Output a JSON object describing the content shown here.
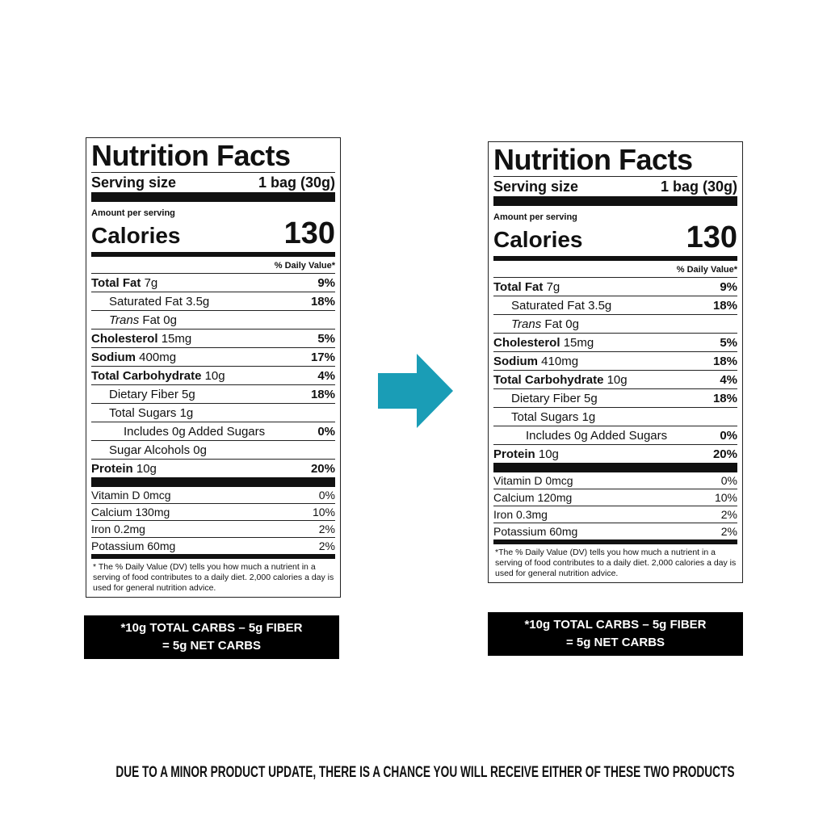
{
  "labels": [
    {
      "title": "Nutrition Facts",
      "serving_label": "Serving size",
      "serving_value": "1 bag (30g)",
      "amount_per_serving": "Amount per serving",
      "calories_label": "Calories",
      "calories_value": "130",
      "dv_header": "% Daily Value*",
      "nutrients": [
        {
          "name": "Total Fat",
          "amount": "7g",
          "dv": "9%",
          "bold": true,
          "indent": 0
        },
        {
          "name": "Saturated Fat",
          "amount": "3.5g",
          "dv": "18%",
          "bold": false,
          "indent": 1
        },
        {
          "italic": "Trans",
          "name": "Fat",
          "amount": "0g",
          "bold": false,
          "indent": 1
        },
        {
          "name": "Cholesterol",
          "amount": "15mg",
          "dv": "5%",
          "bold": true,
          "indent": 0
        },
        {
          "name": "Sodium",
          "amount": "400mg",
          "dv": "17%",
          "bold": true,
          "indent": 0
        },
        {
          "name": "Total Carbohydrate",
          "amount": "10g",
          "dv": "4%",
          "bold": true,
          "indent": 0
        },
        {
          "name": "Dietary Fiber",
          "amount": "5g",
          "dv": "18%",
          "bold": false,
          "indent": 1
        },
        {
          "name": "Total Sugars",
          "amount": "1g",
          "bold": false,
          "indent": 1
        },
        {
          "name": "Includes 0g Added Sugars",
          "dv": "0%",
          "bold": false,
          "indent": 2
        },
        {
          "name": "Sugar Alcohols",
          "amount": "0g",
          "bold": false,
          "indent": 1
        },
        {
          "name": "Protein",
          "amount": "10g",
          "dv": "20%",
          "bold": true,
          "indent": 0
        }
      ],
      "vitamins": [
        {
          "name": "Vitamin D 0mcg",
          "dv": "0%"
        },
        {
          "name": "Calcium 130mg",
          "dv": "10%"
        },
        {
          "name": "Iron 0.2mg",
          "dv": "2%"
        },
        {
          "name": "Potassium 60mg",
          "dv": "2%"
        }
      ],
      "footnote": "* The % Daily Value (DV) tells you how much a nutrient in a serving of food contributes to a daily diet. 2,000 calories a day is used for general nutrition advice.",
      "net_carbs": [
        "*10g TOTAL CARBS – 5g FIBER",
        "= 5g NET CARBS"
      ]
    },
    {
      "title": "Nutrition Facts",
      "serving_label": "Serving size",
      "serving_value": "1 bag (30g)",
      "amount_per_serving": "Amount per serving",
      "calories_label": "Calories",
      "calories_value": "130",
      "dv_header": "% Daily Value*",
      "nutrients": [
        {
          "name": "Total Fat",
          "amount": "7g",
          "dv": "9%",
          "bold": true,
          "indent": 0
        },
        {
          "name": "Saturated Fat",
          "amount": "3.5g",
          "dv": "18%",
          "bold": false,
          "indent": 1
        },
        {
          "italic": "Trans",
          "name": "Fat",
          "amount": "0g",
          "bold": false,
          "indent": 1
        },
        {
          "name": "Cholesterol",
          "amount": "15mg",
          "dv": "5%",
          "bold": true,
          "indent": 0
        },
        {
          "name": "Sodium",
          "amount": "410mg",
          "dv": "18%",
          "bold": true,
          "indent": 0
        },
        {
          "name": "Total Carbohydrate",
          "amount": "10g",
          "dv": "4%",
          "bold": true,
          "indent": 0
        },
        {
          "name": "Dietary Fiber",
          "amount": "5g",
          "dv": "18%",
          "bold": false,
          "indent": 1
        },
        {
          "name": "Total Sugars",
          "amount": "1g",
          "bold": false,
          "indent": 1
        },
        {
          "name": "Includes 0g Added Sugars",
          "dv": "0%",
          "bold": false,
          "indent": 2
        },
        {
          "name": "Protein",
          "amount": "10g",
          "dv": "20%",
          "bold": true,
          "indent": 0
        }
      ],
      "vitamins": [
        {
          "name": "Vitamin D 0mcg",
          "dv": "0%"
        },
        {
          "name": "Calcium 120mg",
          "dv": "10%"
        },
        {
          "name": "Iron 0.3mg",
          "dv": "2%"
        },
        {
          "name": "Potassium 60mg",
          "dv": "2%"
        }
      ],
      "footnote": "*The % Daily Value (DV) tells you how much a nutrient in a serving of food contributes to a daily diet. 2,000 calories a day is used for general nutrition advice.",
      "net_carbs": [
        "*10g TOTAL CARBS – 5g FIBER",
        "= 5g NET CARBS"
      ]
    }
  ],
  "footer": "DUE TO A MINOR PRODUCT UPDATE, THERE IS A CHANCE YOU WILL RECEIVE EITHER OF THESE TWO PRODUCTS"
}
